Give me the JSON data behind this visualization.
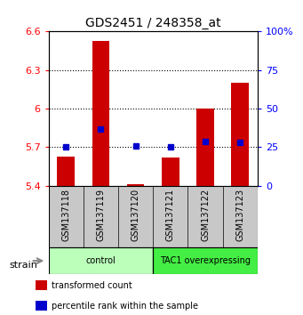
{
  "title": "GDS2451 / 248358_at",
  "samples": [
    "GSM137118",
    "GSM137119",
    "GSM137120",
    "GSM137121",
    "GSM137122",
    "GSM137123"
  ],
  "groups": [
    {
      "name": "control",
      "indices": [
        0,
        1,
        2
      ],
      "color": "#bbffbb"
    },
    {
      "name": "TAC1 overexpressing",
      "indices": [
        3,
        4,
        5
      ],
      "color": "#44ee44"
    }
  ],
  "transformed_counts": [
    5.63,
    6.53,
    5.41,
    5.62,
    6.0,
    6.2
  ],
  "percentile_ranks": [
    25,
    37,
    26,
    25,
    29,
    28
  ],
  "bar_bottom": 5.4,
  "bar_color": "#cc0000",
  "dot_color": "#0000cc",
  "ylim_left": [
    5.4,
    6.6
  ],
  "ylim_right": [
    0,
    100
  ],
  "yticks_left": [
    5.4,
    5.7,
    6.0,
    6.3,
    6.6
  ],
  "yticks_right": [
    0,
    25,
    50,
    75,
    100
  ],
  "ytick_labels_left": [
    "5.4",
    "5.7",
    "6",
    "6.3",
    "6.6"
  ],
  "ytick_labels_right": [
    "0",
    "25",
    "50",
    "75",
    "100%"
  ],
  "hlines": [
    5.7,
    6.0,
    6.3
  ],
  "strain_label": "strain",
  "legend_items": [
    {
      "color": "#cc0000",
      "label": "transformed count"
    },
    {
      "color": "#0000cc",
      "label": "percentile rank within the sample"
    }
  ]
}
